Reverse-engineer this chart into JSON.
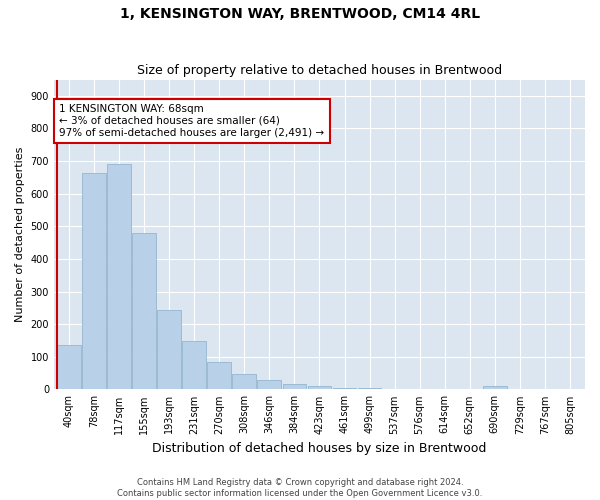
{
  "title": "1, KENSINGTON WAY, BRENTWOOD, CM14 4RL",
  "subtitle": "Size of property relative to detached houses in Brentwood",
  "xlabel": "Distribution of detached houses by size in Brentwood",
  "ylabel": "Number of detached properties",
  "categories": [
    "40sqm",
    "78sqm",
    "117sqm",
    "155sqm",
    "193sqm",
    "231sqm",
    "270sqm",
    "308sqm",
    "346sqm",
    "384sqm",
    "423sqm",
    "461sqm",
    "499sqm",
    "537sqm",
    "576sqm",
    "614sqm",
    "652sqm",
    "690sqm",
    "729sqm",
    "767sqm",
    "805sqm"
  ],
  "values": [
    135,
    665,
    690,
    480,
    245,
    148,
    83,
    48,
    28,
    18,
    12,
    5,
    3,
    2,
    1,
    0,
    0,
    10,
    0,
    0,
    0
  ],
  "bar_color": "#b8d0e8",
  "bar_edge_color": "#8aaec8",
  "marker_color": "#cc0000",
  "annotation_text": "1 KENSINGTON WAY: 68sqm\n← 3% of detached houses are smaller (64)\n97% of semi-detached houses are larger (2,491) →",
  "annotation_box_color": "#ffffff",
  "annotation_box_edge": "#cc0000",
  "ylim": [
    0,
    950
  ],
  "yticks": [
    0,
    100,
    200,
    300,
    400,
    500,
    600,
    700,
    800,
    900
  ],
  "bg_color": "#dce6f0",
  "footer_line1": "Contains HM Land Registry data © Crown copyright and database right 2024.",
  "footer_line2": "Contains public sector information licensed under the Open Government Licence v3.0.",
  "title_fontsize": 10,
  "subtitle_fontsize": 9,
  "annot_fontsize": 7.5,
  "ylabel_fontsize": 8,
  "xlabel_fontsize": 9,
  "footer_fontsize": 6,
  "tick_fontsize": 7
}
